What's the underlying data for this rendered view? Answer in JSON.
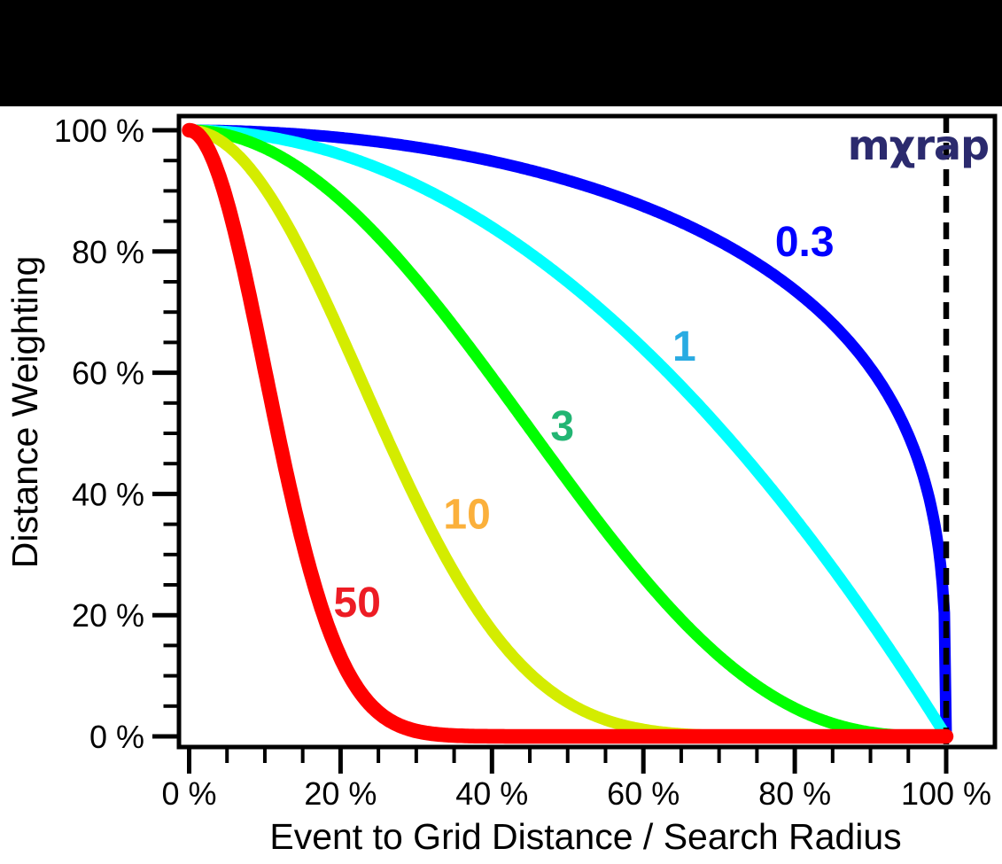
{
  "logo": {
    "text": "mχrap",
    "color": "#2b2a6e"
  },
  "chart_data": {
    "type": "line",
    "title": "",
    "xlabel": "Event to Grid Distance / Search Radius",
    "ylabel": "Distance Weighting",
    "xlim": [
      0,
      100
    ],
    "ylim": [
      0,
      100
    ],
    "grid": false,
    "x_tick_values": [
      0,
      20,
      40,
      60,
      80,
      100
    ],
    "x_tick_labels": [
      "0 %",
      "20 %",
      "40 %",
      "60 %",
      "80 %",
      "100 %"
    ],
    "y_tick_values": [
      0,
      20,
      40,
      60,
      80,
      100
    ],
    "y_tick_labels": [
      "0 %",
      "20 %",
      "40 %",
      "60 %",
      "80 %",
      "100 %"
    ],
    "minor_tick_step": 5,
    "legend": "inline curve labels",
    "x_sample_points": [
      0,
      5,
      10,
      15,
      20,
      25,
      30,
      35,
      40,
      45,
      50,
      55,
      60,
      65,
      70,
      75,
      80,
      85,
      90,
      95,
      100
    ],
    "series": [
      {
        "name": "0.3",
        "weighting_exponent": 0.3,
        "color": "#0000ff",
        "label_color": "#0000ff",
        "label_at": {
          "x": 81.3,
          "y": 81.7
        },
        "values": [
          100,
          99.9,
          99.7,
          99.3,
          98.8,
          98.1,
          97.2,
          96.2,
          94.9,
          93.4,
          91.7,
          89.8,
          87.5,
          84.8,
          81.7,
          78.0,
          73.6,
          68.1,
          60.8,
          49.7,
          0
        ]
      },
      {
        "name": "1",
        "weighting_exponent": 1,
        "color": "#00ffff",
        "label_color": "#29abe2",
        "label_at": {
          "x": 65.4,
          "y": 64.5
        },
        "values": [
          100,
          99.8,
          99.0,
          97.8,
          96.0,
          93.8,
          91.0,
          87.8,
          84.0,
          79.8,
          75.0,
          69.8,
          64.0,
          57.8,
          51.0,
          43.8,
          36.0,
          27.8,
          19.0,
          9.8,
          0
        ]
      },
      {
        "name": "3",
        "weighting_exponent": 3,
        "color": "#00ff00",
        "label_color": "#22b573",
        "label_at": {
          "x": 49.3,
          "y": 51.3
        },
        "values": [
          100,
          99.3,
          97.0,
          93.4,
          88.5,
          82.4,
          75.4,
          67.6,
          59.3,
          50.7,
          42.2,
          33.9,
          26.2,
          19.3,
          13.3,
          8.4,
          4.7,
          2.1,
          0.7,
          0.1,
          0
        ]
      },
      {
        "name": "10",
        "weighting_exponent": 10,
        "color": "#d4ec00",
        "label_color": "#fbb03b",
        "label_at": {
          "x": 36.7,
          "y": 36.8
        },
        "values": [
          100,
          97.5,
          90.4,
          79.6,
          66.5,
          52.5,
          38.9,
          27.1,
          17.5,
          10.4,
          5.6,
          2.7,
          1.2,
          0.4,
          0.1,
          0,
          0,
          0,
          0,
          0,
          0
        ]
      },
      {
        "name": "50",
        "weighting_exponent": 50,
        "color": "#ff0000",
        "label_color": "#ed1c24",
        "label_at": {
          "x": 22.2,
          "y": 22.2
        },
        "values": [
          100,
          88.2,
          60.5,
          32.0,
          13.0,
          4.0,
          0.9,
          0.1,
          0,
          0,
          0,
          0,
          0,
          0,
          0,
          0,
          0,
          0,
          0,
          0,
          0
        ]
      }
    ],
    "reference_line": {
      "x": 100,
      "style": "dashed",
      "color": "#000000"
    }
  }
}
